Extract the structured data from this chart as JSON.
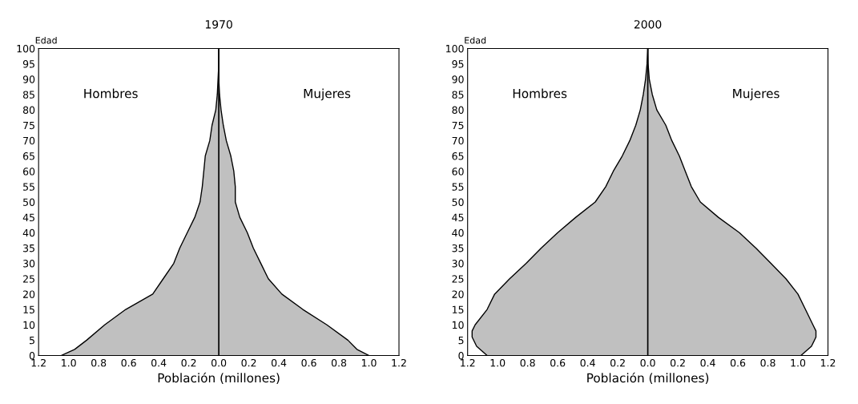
{
  "chart_data": [
    {
      "type": "area",
      "orientation": "horizontal",
      "title": "1970",
      "xlabel": "Población (millones)",
      "ylabel": "Edad",
      "annotations": [
        "Hombres",
        "Mujeres"
      ],
      "x": [
        0,
        2,
        5,
        10,
        15,
        20,
        25,
        30,
        35,
        40,
        45,
        50,
        55,
        60,
        65,
        70,
        75,
        80,
        85,
        90,
        95,
        100
      ],
      "series": [
        {
          "color": "#c0c0c0",
          "values": [
            -1.05,
            -0.96,
            -0.88,
            -0.76,
            -0.62,
            -0.44,
            -0.37,
            -0.3,
            -0.26,
            -0.21,
            -0.16,
            -0.125,
            -0.11,
            -0.1,
            -0.09,
            -0.06,
            -0.045,
            -0.02,
            -0.01,
            -0.005,
            0,
            0
          ]
        },
        {
          "color": "#c0c0c0",
          "values": [
            1.0,
            0.92,
            0.86,
            0.72,
            0.56,
            0.42,
            0.33,
            0.28,
            0.23,
            0.19,
            0.14,
            0.11,
            0.11,
            0.1,
            0.08,
            0.05,
            0.03,
            0.015,
            0.005,
            0,
            0,
            0
          ]
        }
      ],
      "xlim": [
        -1.2,
        1.2
      ],
      "ylim": [
        0,
        100
      ],
      "xticks": [
        {
          "value": -1.2,
          "label": "1.2"
        },
        {
          "value": -1.0,
          "label": "1.0"
        },
        {
          "value": -0.8,
          "label": "0.8"
        },
        {
          "value": -0.6,
          "label": "0.6"
        },
        {
          "value": -0.4,
          "label": "0.4"
        },
        {
          "value": -0.2,
          "label": "0.2"
        },
        {
          "value": 0,
          "label": "0.0"
        },
        {
          "value": 0.2,
          "label": "0.2"
        },
        {
          "value": 0.4,
          "label": "0.4"
        },
        {
          "value": 0.6,
          "label": "0.6"
        },
        {
          "value": 0.8,
          "label": "0.8"
        },
        {
          "value": 1.0,
          "label": "1.0"
        },
        {
          "value": 1.2,
          "label": "1.2"
        }
      ],
      "yticks": [
        0,
        5,
        10,
        15,
        20,
        25,
        30,
        35,
        40,
        45,
        50,
        55,
        60,
        65,
        70,
        75,
        80,
        85,
        90,
        95,
        100
      ],
      "ref_lines": [
        {
          "axis": "x",
          "value": 0,
          "color": "#000000"
        }
      ]
    },
    {
      "type": "area",
      "orientation": "horizontal",
      "title": "2000",
      "xlabel": "Población (millones)",
      "ylabel": "Edad",
      "annotations": [
        "Hombres",
        "Mujeres"
      ],
      "x": [
        0,
        3,
        6,
        8,
        10,
        15,
        20,
        25,
        30,
        35,
        40,
        45,
        50,
        55,
        60,
        65,
        70,
        75,
        80,
        85,
        90,
        95,
        100
      ],
      "series": [
        {
          "color": "#c0c0c0",
          "values": [
            -1.07,
            -1.14,
            -1.17,
            -1.17,
            -1.15,
            -1.07,
            -1.02,
            -0.92,
            -0.81,
            -0.71,
            -0.6,
            -0.48,
            -0.35,
            -0.28,
            -0.23,
            -0.17,
            -0.12,
            -0.08,
            -0.05,
            -0.03,
            -0.015,
            -0.005,
            0
          ]
        },
        {
          "color": "#c0c0c0",
          "values": [
            1.02,
            1.09,
            1.12,
            1.12,
            1.1,
            1.05,
            1.0,
            0.92,
            0.82,
            0.72,
            0.61,
            0.47,
            0.35,
            0.29,
            0.25,
            0.21,
            0.16,
            0.12,
            0.06,
            0.03,
            0.01,
            0.002,
            0
          ]
        }
      ],
      "xlim": [
        -1.2,
        1.2
      ],
      "ylim": [
        0,
        100
      ],
      "xticks": [
        {
          "value": -1.2,
          "label": "1.2"
        },
        {
          "value": -1.0,
          "label": "1.0"
        },
        {
          "value": -0.8,
          "label": "0.8"
        },
        {
          "value": -0.6,
          "label": "0.6"
        },
        {
          "value": -0.4,
          "label": "0.4"
        },
        {
          "value": -0.2,
          "label": "0.2"
        },
        {
          "value": 0,
          "label": "0.0"
        },
        {
          "value": 0.2,
          "label": "0.2"
        },
        {
          "value": 0.4,
          "label": "0.4"
        },
        {
          "value": 0.6,
          "label": "0.6"
        },
        {
          "value": 0.8,
          "label": "0.8"
        },
        {
          "value": 1.0,
          "label": "1.0"
        },
        {
          "value": 1.2,
          "label": "1.2"
        }
      ],
      "yticks": [
        0,
        5,
        10,
        15,
        20,
        25,
        30,
        35,
        40,
        45,
        50,
        55,
        60,
        65,
        70,
        75,
        80,
        85,
        90,
        95,
        100
      ],
      "ref_lines": [
        {
          "axis": "x",
          "value": 0,
          "color": "#000000"
        }
      ]
    }
  ]
}
